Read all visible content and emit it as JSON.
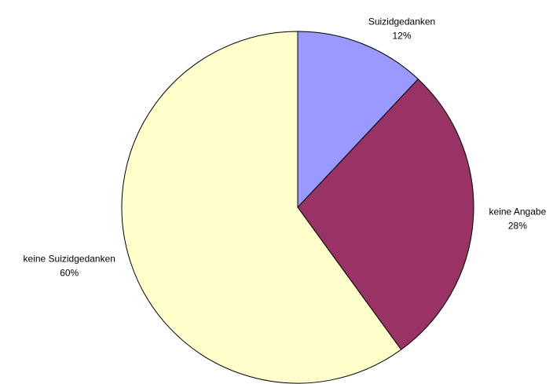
{
  "chart_data": {
    "type": "pie",
    "categories": [
      "Suizidgedanken",
      "keine Angabe",
      "keine Suizidgedanken"
    ],
    "values": [
      12,
      28,
      60
    ],
    "value_labels": [
      "12%",
      "28%",
      "60%"
    ],
    "colors": [
      "#9999ff",
      "#993366",
      "#ffffcc"
    ]
  }
}
